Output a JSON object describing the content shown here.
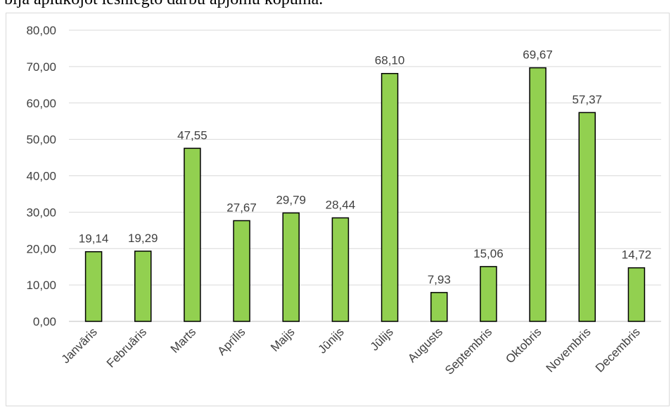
{
  "caption": "bija aplūkojot iesniegto darbu apjomu kopumā.",
  "chart_data": {
    "type": "bar",
    "categories": [
      "Janvāris",
      "Februāris",
      "Marts",
      "Aprīlis",
      "Maijs",
      "Jūnijs",
      "Jūlijs",
      "Augusts",
      "Septembris",
      "Oktobris",
      "Novembris",
      "Decembris"
    ],
    "values": [
      19.14,
      19.29,
      47.55,
      27.67,
      29.79,
      28.44,
      68.1,
      7.93,
      15.06,
      69.67,
      57.37,
      14.72
    ],
    "data_labels": [
      "19,14",
      "19,29",
      "47,55",
      "27,67",
      "29,79",
      "28,44",
      "68,10",
      "7,93",
      "15,06",
      "69,67",
      "57,37",
      "14,72"
    ],
    "yticks": [
      "0,00",
      "10,00",
      "20,00",
      "30,00",
      "40,00",
      "50,00",
      "60,00",
      "70,00",
      "80,00"
    ],
    "ylim": [
      0,
      80
    ],
    "grid": true,
    "legend": "none",
    "bar_color": "#92d050",
    "bar_edge_color": "#000000",
    "grid_color": "#d9d9d9"
  }
}
